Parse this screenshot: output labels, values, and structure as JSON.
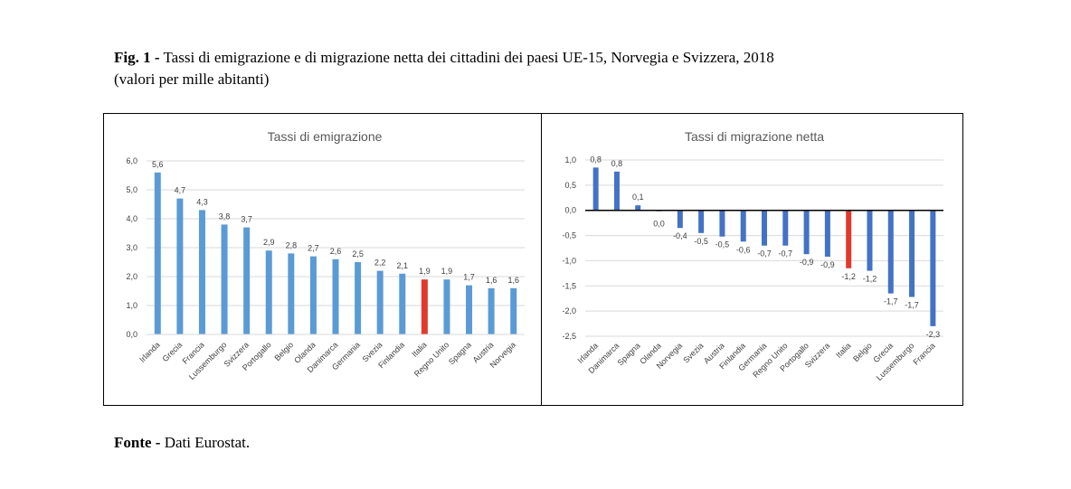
{
  "figure": {
    "label": "Fig. 1 -",
    "title": "Tassi di emigrazione e di migrazione netta dei cittadini dei paesi UE-15, Norvegia e Svizzera, 2018",
    "subtitle": "(valori per mille abitanti)",
    "source_label": "Fonte -",
    "source_text": "Dati Eurostat."
  },
  "colors": {
    "bar_left": "#5b9bd5",
    "bar_right": "#4472c4",
    "highlight": "#e03a2d",
    "grid": "#d9d9d9",
    "zero_line": "#000000"
  },
  "chart_data": [
    {
      "type": "bar",
      "title": "Tassi di emigrazione",
      "categories": [
        "Irlanda",
        "Grecia",
        "Francia",
        "Lussemburgo",
        "Svizzera",
        "Portogallo",
        "Belgio",
        "Olanda",
        "Danimarca",
        "Germania",
        "Svezia",
        "Finlandia",
        "Italia",
        "Regno Unito",
        "Spagna",
        "Austria",
        "Norvegia"
      ],
      "values": [
        5.6,
        4.7,
        4.3,
        3.8,
        3.7,
        2.9,
        2.8,
        2.7,
        2.6,
        2.5,
        2.2,
        2.1,
        1.9,
        1.9,
        1.7,
        1.6,
        1.6
      ],
      "value_labels": [
        "5,6",
        "4,7",
        "4,3",
        "3,8",
        "3,7",
        "2,9",
        "2,8",
        "2,7",
        "2,6",
        "2,5",
        "2,2",
        "2,1",
        "1,9",
        "1,9",
        "1,7",
        "1,6",
        "1,6"
      ],
      "highlight": "Italia",
      "ylim": [
        0,
        6
      ],
      "yticks": [
        "0,0",
        "1,0",
        "2,0",
        "3,0",
        "4,0",
        "5,0",
        "6,0"
      ],
      "grid": true
    },
    {
      "type": "bar",
      "title": "Tassi di migrazione netta",
      "categories": [
        "Irlanda",
        "Danimarca",
        "Spagna",
        "Olanda",
        "Norvegia",
        "Svezia",
        "Austria",
        "Finlandia",
        "Germania",
        "Regno Unito",
        "Portogallo",
        "Svizzera",
        "Italia",
        "Belgio",
        "Grecia",
        "Lussemburgo",
        "Francia"
      ],
      "values": [
        0.85,
        0.77,
        0.1,
        0.0,
        -0.35,
        -0.45,
        -0.52,
        -0.62,
        -0.7,
        -0.7,
        -0.87,
        -0.92,
        -1.15,
        -1.2,
        -1.65,
        -1.72,
        -2.3
      ],
      "value_labels": [
        "0,8",
        "0,8",
        "0,1",
        "0,0",
        "-0,4",
        "-0,5",
        "-0,5",
        "-0,6",
        "-0,7",
        "-0,7",
        "-0,9",
        "-0,9",
        "-1,2",
        "-1,2",
        "-1,7",
        "-1,7",
        "-2,3"
      ],
      "highlight": "Italia",
      "ylim": [
        -2.5,
        1.0
      ],
      "yticks": [
        "1,0",
        "0,5",
        "0,0",
        "-0,5",
        "-1,0",
        "-1,5",
        "-2,0",
        "-2,5"
      ],
      "grid": true
    }
  ]
}
